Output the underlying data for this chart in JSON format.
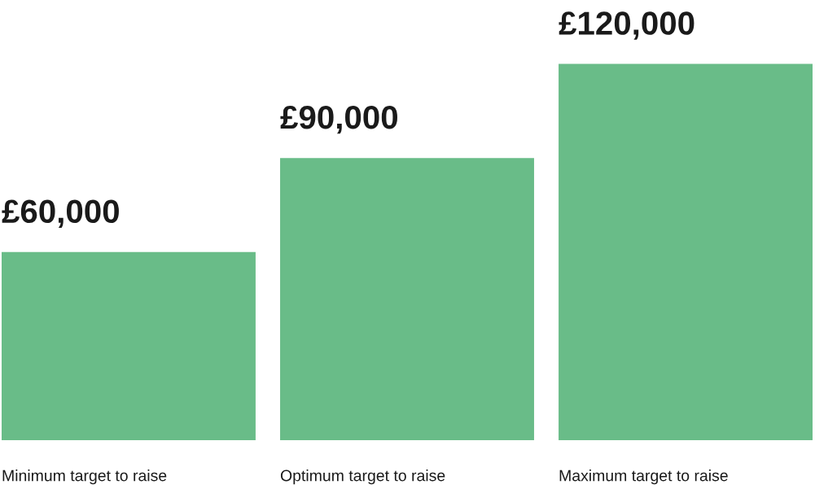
{
  "chart_data": {
    "type": "bar",
    "categories": [
      "Minimum target to raise",
      "Optimum target to raise",
      "Maximum target to raise"
    ],
    "values": [
      60000,
      90000,
      120000
    ],
    "value_labels": [
      "£60,000",
      "£90,000",
      "£120,000"
    ],
    "color": "#69bc88"
  }
}
